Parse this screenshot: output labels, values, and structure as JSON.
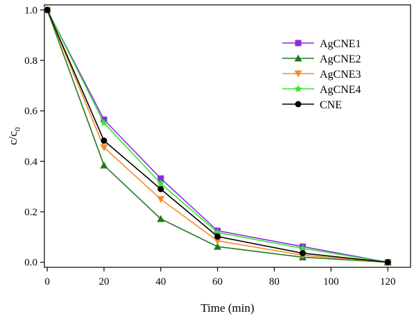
{
  "chart_data": {
    "type": "line",
    "title": "",
    "xlabel": "Time (min)",
    "ylabel": "c/c",
    "ylabel_subscript": "0",
    "x": [
      0,
      20,
      40,
      60,
      90,
      120
    ],
    "xlim": [
      -1,
      128
    ],
    "ylim": [
      -0.02,
      1.02
    ],
    "xticks": [
      0,
      20,
      40,
      60,
      80,
      100,
      120
    ],
    "yticks": [
      0.0,
      0.2,
      0.4,
      0.6,
      0.8,
      1.0
    ],
    "xtick_labels": [
      "0",
      "20",
      "40",
      "60",
      "80",
      "100",
      "120"
    ],
    "ytick_labels": [
      "0.0",
      "0.2",
      "0.4",
      "0.6",
      "0.8",
      "1.0"
    ],
    "grid": false,
    "legend_position": "top-right",
    "series": [
      {
        "name": "AgCNE1",
        "color": "#8a2be2",
        "marker": "square",
        "values": [
          1.0,
          0.565,
          0.332,
          0.125,
          0.062,
          0.0
        ]
      },
      {
        "name": "AgCNE2",
        "color": "#1f7a1f",
        "marker": "triangle-up",
        "values": [
          1.0,
          0.384,
          0.172,
          0.062,
          0.02,
          0.0
        ]
      },
      {
        "name": "AgCNE3",
        "color": "#f28c28",
        "marker": "triangle-down",
        "values": [
          1.0,
          0.455,
          0.25,
          0.085,
          0.028,
          0.0
        ]
      },
      {
        "name": "AgCNE4",
        "color": "#33e633",
        "marker": "star",
        "values": [
          1.0,
          0.552,
          0.312,
          0.118,
          0.055,
          0.0
        ]
      },
      {
        "name": "CNE",
        "color": "#000000",
        "marker": "circle",
        "values": [
          1.0,
          0.482,
          0.29,
          0.102,
          0.036,
          0.0
        ]
      }
    ]
  }
}
